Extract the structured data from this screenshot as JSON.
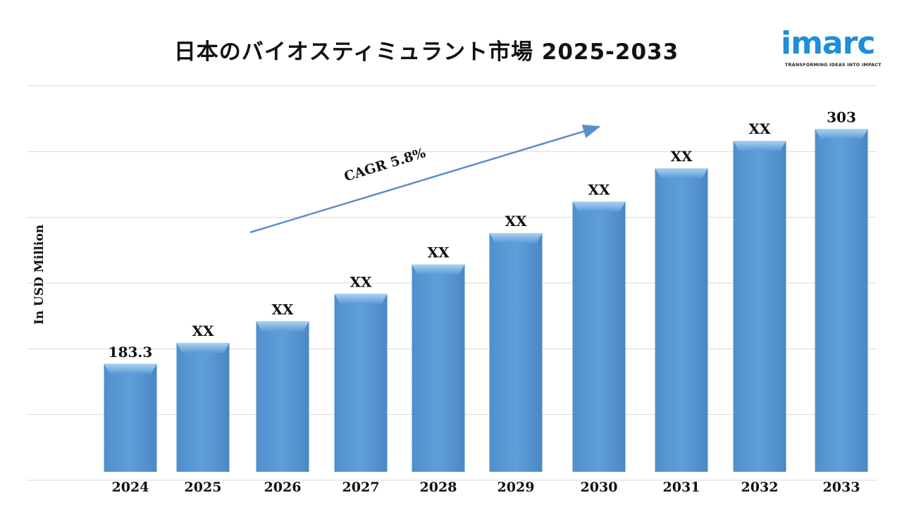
{
  "title": "日本のバイオスティミュラント市場 2025-2033",
  "logo": {
    "word": "imarc",
    "tagline": "TRANSFORMING IDEAS INTO IMPACT"
  },
  "chart_data": {
    "type": "bar",
    "title": "日本のバイオスティミュラント市場 2025-2033",
    "ylabel": "In USD Million",
    "xlabel": "",
    "categories": [
      "2024",
      "2025",
      "2026",
      "2027",
      "2028",
      "2029",
      "2030",
      "2031",
      "2032",
      "2033"
    ],
    "values": [
      183.3,
      194,
      205,
      219,
      234,
      250,
      266,
      283,
      297,
      303
    ],
    "data_labels": [
      "183.3",
      "XX",
      "XX",
      "XX",
      "XX",
      "XX",
      "XX",
      "XX",
      "XX",
      "303"
    ],
    "ylim": [
      124,
      325
    ],
    "grid": true,
    "annotation": "CAGR 5.8%",
    "bar_color": "#5b9bd5"
  }
}
